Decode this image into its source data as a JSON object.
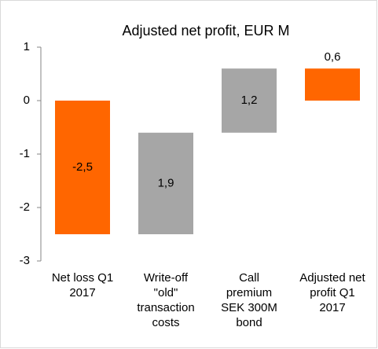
{
  "chart_data": {
    "type": "waterfall",
    "title": "Adjusted net profit, EUR M",
    "categories": [
      "Net loss Q1 2017",
      "Write-off \"old\" transaction costs",
      "Call premium SEK 300M bond",
      "Adjusted net profit Q1 2017"
    ],
    "values": [
      -2.5,
      1.9,
      1.2,
      0.6
    ],
    "value_labels": [
      "-2,5",
      "1,9",
      "1,2",
      "0,6"
    ],
    "measure": [
      "relative",
      "relative",
      "relative",
      "total"
    ],
    "colors": [
      "#ff6600",
      "#a6a6a6",
      "#a6a6a6",
      "#ff6600"
    ],
    "ylim": [
      -3,
      1
    ],
    "yticks": [
      -3,
      -2,
      -1,
      0,
      1
    ],
    "grid": false
  }
}
